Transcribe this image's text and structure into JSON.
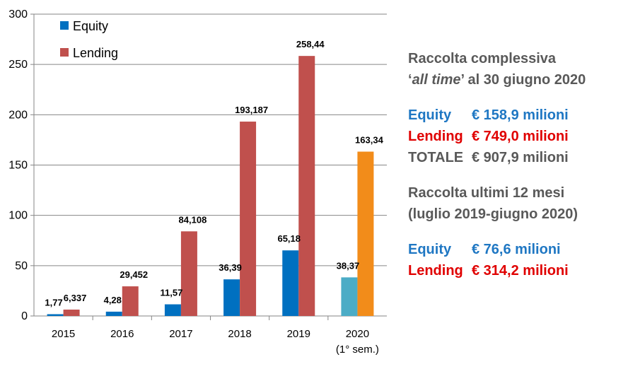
{
  "chart_data": {
    "type": "bar",
    "categories": [
      "2015",
      "2016",
      "2017",
      "2018",
      "2019",
      "2020"
    ],
    "category_sublabels": [
      "",
      "",
      "",
      "",
      "",
      "(1° sem.)"
    ],
    "series": [
      {
        "name": "Equity",
        "values": [
          1.77,
          4.28,
          11.57,
          36.39,
          65.18,
          38.37
        ],
        "value_labels": [
          "1,77",
          "4,28",
          "11,57",
          "36,39",
          "65,18",
          "38,37"
        ],
        "color": "#0070C0",
        "highlight_color": "#4BACC6"
      },
      {
        "name": "Lending",
        "values": [
          6.337,
          29.452,
          84.108,
          193.187,
          258.44,
          163.34
        ],
        "value_labels": [
          "6,337",
          "29,452",
          "84,108",
          "193,187",
          "258,44",
          "163,34"
        ],
        "color": "#C0504D",
        "highlight_color": "#F28C1A"
      }
    ],
    "highlight_category": "2020",
    "ylim": [
      0,
      300
    ],
    "yticks": [
      0,
      50,
      100,
      150,
      200,
      250,
      300
    ],
    "grid": true,
    "legend": "top-left"
  },
  "info": {
    "all_time_title_1": "Raccolta complessiva",
    "all_time_title_2_prefix": "‘",
    "all_time_title_2_italic": "all time",
    "all_time_title_2_suffix": "’ al 30 giugno 2020",
    "all_time": {
      "equity_label": "Equity",
      "equity_value": "€ 158,9 milioni",
      "lending_label": "Lending",
      "lending_value": "€ 749,0 milioni",
      "total_label": "TOTALE",
      "total_value": "€ 907,9 milioni"
    },
    "last12_title_1": "Raccolta ultimi 12 mesi",
    "last12_title_2": "(luglio 2019-giugno 2020)",
    "last12": {
      "equity_label": "Equity",
      "equity_value": "€ 76,6 milioni",
      "lending_label": "Lending",
      "lending_value": "€ 314,2 milioni"
    }
  }
}
